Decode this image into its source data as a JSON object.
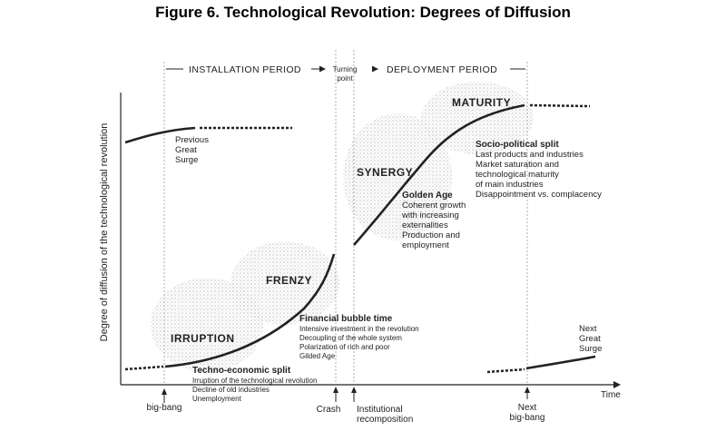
{
  "title": "Figure 6. Technological Revolution: Degrees of Diffusion",
  "y_axis_label": "Degree of diffusion of the technological revolution",
  "x_axis_label": "Time",
  "periods": {
    "installation": "INSTALLATION PERIOD",
    "turning_point": [
      "Turning",
      "point"
    ],
    "deployment": "DEPLOYMENT PERIOD"
  },
  "phases": {
    "irruption": "IRRUPTION",
    "frenzy": "FRENZY",
    "synergy": "SYNERGY",
    "maturity": "MATURITY"
  },
  "previous_surge": [
    "Previous",
    "Great",
    "Surge"
  ],
  "next_surge": [
    "Next",
    "Great",
    "Surge"
  ],
  "techno_split": {
    "heading": "Techno-economic split",
    "lines": [
      "Irruption of the technological revolution",
      "Decline of old industries",
      "Unemployment"
    ]
  },
  "bubble": {
    "heading": "Financial bubble time",
    "lines": [
      "Intensive investment in the revolution",
      "Decoupling of the whole system",
      "Polarization of rich and poor",
      "Gilded Age"
    ]
  },
  "golden_age": {
    "heading": "Golden Age",
    "lines": [
      "Coherent growth",
      "with increasing",
      "externalities",
      "Production and",
      "employment"
    ]
  },
  "socio_split": {
    "heading": "Socio-political split",
    "lines": [
      "Last products and industries",
      "Market saturation and",
      "technological maturity",
      "of main industries",
      "Disappointment vs. complacency"
    ]
  },
  "time_markers": {
    "big_bang": "big-bang",
    "crash": "Crash",
    "institutional": [
      "Institutional",
      "recomposition"
    ],
    "next_big_bang": [
      "Next",
      "big-bang"
    ]
  },
  "colors": {
    "ink": "#222222",
    "stipple": "#c9c9c9"
  }
}
